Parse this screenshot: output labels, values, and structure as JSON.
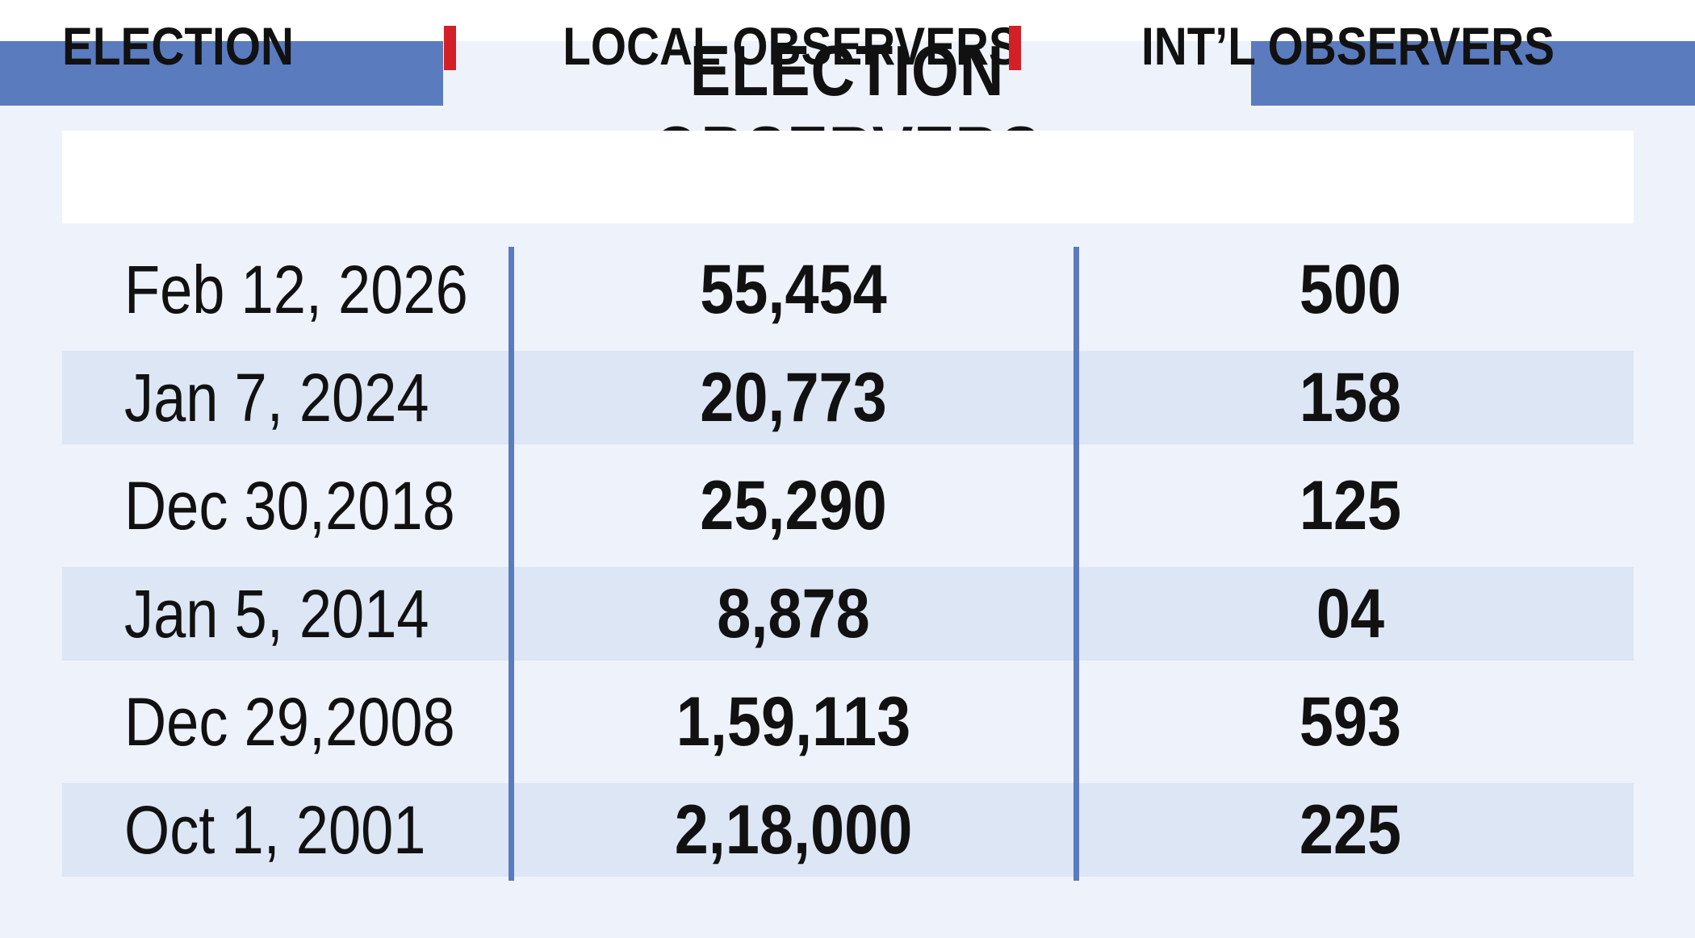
{
  "title": "ELECTION OBSERVERS",
  "colors": {
    "accent_blue": "#5b7bbf",
    "header_tick_red": "#d32027",
    "band_row": "#dde6f4",
    "background": "#eef2fa"
  },
  "chart_data": {
    "type": "table",
    "title": "ELECTION OBSERVERS",
    "columns": [
      "ELECTION",
      "LOCAL OBSERVERS",
      "INT’L OBSERVERS"
    ],
    "rows": [
      {
        "election": "Feb 12, 2026",
        "local": "55,454",
        "intl": "500"
      },
      {
        "election": "Jan 7, 2024",
        "local": "20,773",
        "intl": "158"
      },
      {
        "election": "Dec 30,2018",
        "local": "25,290",
        "intl": "125"
      },
      {
        "election": "Jan 5, 2014",
        "local": "8,878",
        "intl": "04"
      },
      {
        "election": "Dec 29,2008",
        "local": "1,59,113",
        "intl": "593"
      },
      {
        "election": "Oct 1, 2001",
        "local": "2,18,000",
        "intl": "225"
      }
    ]
  }
}
